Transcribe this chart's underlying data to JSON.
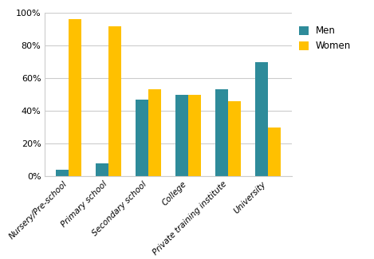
{
  "categories": [
    "Nursery/Pre-school",
    "Primary school",
    "Secondary school",
    "College",
    "Private training institute",
    "University"
  ],
  "men_values": [
    4,
    8,
    47,
    50,
    53,
    70
  ],
  "women_values": [
    96,
    92,
    53,
    50,
    46,
    30
  ],
  "men_color": "#2E8B9A",
  "women_color": "#FFC000",
  "legend_labels": [
    "Men",
    "Women"
  ],
  "ylim": [
    0,
    100
  ],
  "yticks": [
    0,
    20,
    40,
    60,
    80,
    100
  ],
  "ytick_labels": [
    "0%",
    "20%",
    "40%",
    "60%",
    "80%",
    "100%"
  ],
  "bar_width": 0.32,
  "grid_color": "#CCCCCC",
  "background_color": "#FFFFFF"
}
